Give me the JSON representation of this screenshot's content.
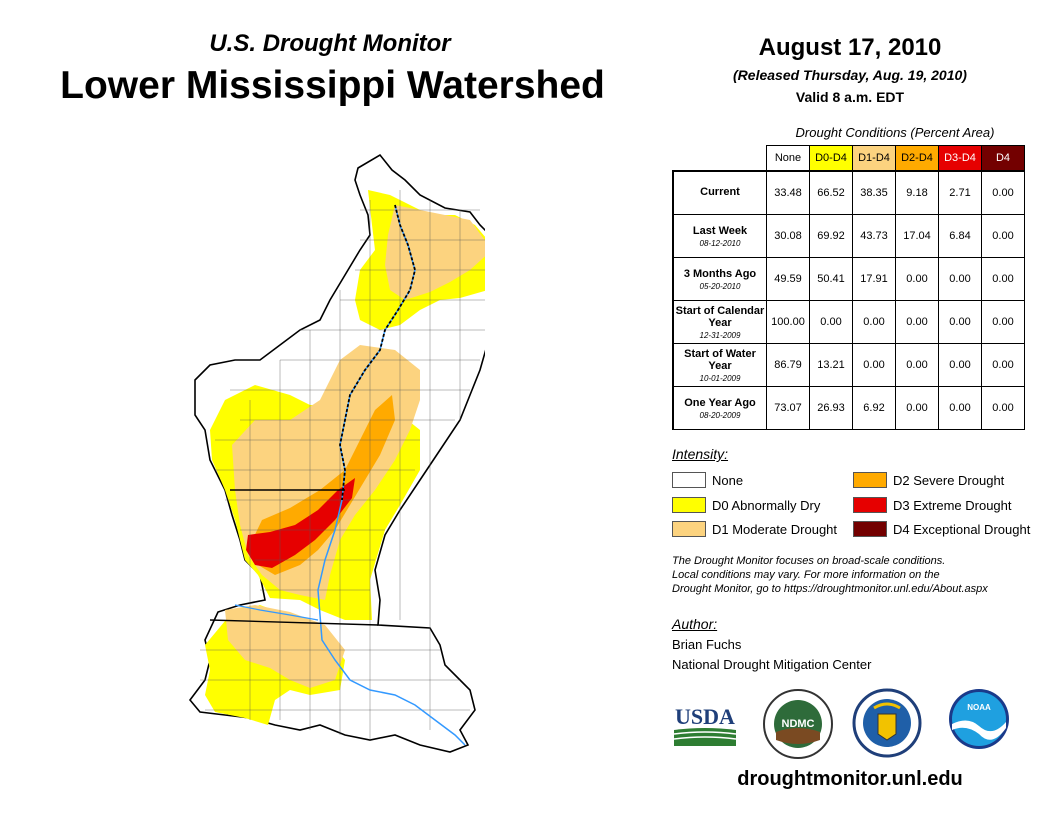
{
  "header": {
    "subtitle": "U.S. Drought Monitor",
    "title": "Lower Mississippi Watershed",
    "date": "August 17, 2010",
    "released": "(Released Thursday, Aug. 19, 2010)",
    "valid": "Valid 8 a.m. EDT"
  },
  "table": {
    "caption": "Drought Conditions (Percent Area)",
    "columns": [
      "None",
      "D0-D4",
      "D1-D4",
      "D2-D4",
      "D3-D4",
      "D4"
    ],
    "column_colors": [
      "#ffffff",
      "#ffff00",
      "#fcd37f",
      "#ffaa00",
      "#e60000",
      "#730000"
    ],
    "rows": [
      {
        "label": "Current",
        "sub": "",
        "values": [
          "33.48",
          "66.52",
          "38.35",
          "9.18",
          "2.71",
          "0.00"
        ]
      },
      {
        "label": "Last Week",
        "sub": "08-12-2010",
        "values": [
          "30.08",
          "69.92",
          "43.73",
          "17.04",
          "6.84",
          "0.00"
        ]
      },
      {
        "label": "3 Months Ago",
        "sub": "05-20-2010",
        "values": [
          "49.59",
          "50.41",
          "17.91",
          "0.00",
          "0.00",
          "0.00"
        ]
      },
      {
        "label": "Start of Calendar Year",
        "sub": "12-31-2009",
        "values": [
          "100.00",
          "0.00",
          "0.00",
          "0.00",
          "0.00",
          "0.00"
        ]
      },
      {
        "label": "Start of Water Year",
        "sub": "10-01-2009",
        "values": [
          "86.79",
          "13.21",
          "0.00",
          "0.00",
          "0.00",
          "0.00"
        ]
      },
      {
        "label": "One Year Ago",
        "sub": "08-20-2009",
        "values": [
          "73.07",
          "26.93",
          "6.92",
          "0.00",
          "0.00",
          "0.00"
        ]
      }
    ]
  },
  "legend": {
    "title": "Intensity:",
    "items": [
      {
        "label": "None",
        "color": "#ffffff"
      },
      {
        "label": "D0 Abnormally Dry",
        "color": "#ffff00"
      },
      {
        "label": "D1 Moderate Drought",
        "color": "#fcd37f"
      },
      {
        "label": "D2 Severe Drought",
        "color": "#ffaa00"
      },
      {
        "label": "D3 Extreme Drought",
        "color": "#e60000"
      },
      {
        "label": "D4 Exceptional Drought",
        "color": "#730000"
      }
    ]
  },
  "note": {
    "line1": "The Drought Monitor focuses on broad-scale conditions.",
    "line2": "Local conditions may vary. For more information on the",
    "line3": "Drought Monitor, go to https://droughtmonitor.unl.edu/About.aspx"
  },
  "author": {
    "label": "Author:",
    "name": "Brian Fuchs",
    "org": "National Drought Mitigation Center"
  },
  "logos": {
    "usda": "USDA",
    "ndmc": "NDMC",
    "noaa": "NOAA"
  },
  "website": "droughtmonitor.unl.edu",
  "map": {
    "region": "Lower Mississippi Watershed",
    "colors": {
      "none": "#ffffff",
      "d0": "#ffff00",
      "d1": "#fcd37f",
      "d2": "#ffaa00",
      "d3": "#e60000",
      "river": "#3399ff",
      "outline": "#000000"
    }
  }
}
